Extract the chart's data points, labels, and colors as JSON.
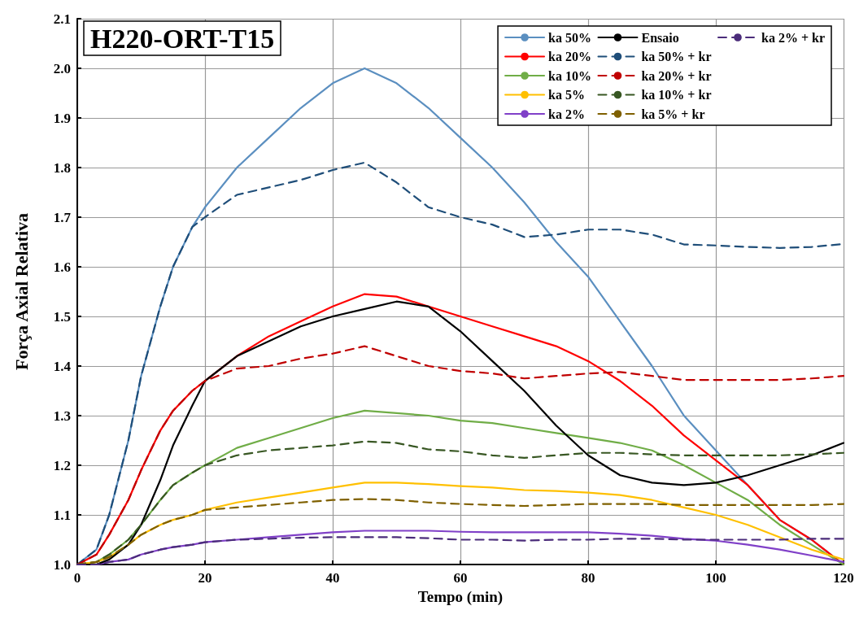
{
  "chart_data": {
    "type": "line",
    "title": "H220-ORT-T15",
    "xlabel": "Tempo (min)",
    "ylabel": "Força Axial Relativa",
    "x": [
      0,
      3,
      5,
      8,
      10,
      13,
      15,
      18,
      20,
      25,
      30,
      35,
      40,
      45,
      50,
      55,
      60,
      65,
      70,
      75,
      80,
      85,
      90,
      95,
      100,
      105,
      110,
      115,
      120
    ],
    "xlim": [
      0,
      120
    ],
    "xticks": [
      0,
      20,
      40,
      60,
      80,
      100,
      120
    ],
    "ylim": [
      1,
      2.1
    ],
    "yticks": [
      {
        "value": 1,
        "label": "1.0"
      },
      {
        "value": 1.1,
        "label": "1.1"
      },
      {
        "value": 1.2,
        "label": "1.2"
      },
      {
        "value": 1.3,
        "label": "1.3"
      },
      {
        "value": 1.4,
        "label": "1.4"
      },
      {
        "value": 1.5,
        "label": "1.5"
      },
      {
        "value": 1.6,
        "label": "1.6"
      },
      {
        "value": 1.7,
        "label": "1.7"
      },
      {
        "value": 1.8,
        "label": "1.8"
      },
      {
        "value": 1.9,
        "label": "1.9"
      },
      {
        "value": 2,
        "label": "2.0"
      },
      {
        "value": 2.1,
        "label": "2.1"
      }
    ],
    "grid": true,
    "legend": "top right",
    "marker": "none",
    "series": [
      {
        "name": "ka 50%",
        "color": "#5b8fc0",
        "line_style": "solid",
        "values": [
          1.0,
          1.03,
          1.1,
          1.25,
          1.38,
          1.52,
          1.6,
          1.68,
          1.72,
          1.8,
          1.86,
          1.92,
          1.97,
          2.0,
          1.97,
          1.92,
          1.86,
          1.8,
          1.73,
          1.65,
          1.58,
          1.49,
          1.4,
          1.3,
          1.23,
          1.16,
          1.09,
          1.05,
          1.0
        ]
      },
      {
        "name": "ka 20%",
        "color": "#ff0000",
        "line_style": "solid",
        "values": [
          1.0,
          1.02,
          1.06,
          1.13,
          1.19,
          1.27,
          1.31,
          1.35,
          1.37,
          1.42,
          1.46,
          1.49,
          1.52,
          1.545,
          1.54,
          1.52,
          1.5,
          1.48,
          1.46,
          1.44,
          1.41,
          1.37,
          1.32,
          1.26,
          1.21,
          1.16,
          1.09,
          1.05,
          1.0
        ]
      },
      {
        "name": "ka 10%",
        "color": "#70ad47",
        "line_style": "solid",
        "values": [
          1.0,
          1.005,
          1.02,
          1.05,
          1.08,
          1.13,
          1.16,
          1.185,
          1.2,
          1.235,
          1.255,
          1.275,
          1.295,
          1.31,
          1.305,
          1.3,
          1.29,
          1.285,
          1.275,
          1.265,
          1.255,
          1.245,
          1.23,
          1.2,
          1.165,
          1.13,
          1.08,
          1.04,
          1.0
        ]
      },
      {
        "name": "ka 5%",
        "color": "#ffc000",
        "line_style": "solid",
        "values": [
          1.0,
          1.005,
          1.015,
          1.04,
          1.06,
          1.08,
          1.09,
          1.1,
          1.11,
          1.125,
          1.135,
          1.145,
          1.155,
          1.165,
          1.165,
          1.162,
          1.158,
          1.155,
          1.15,
          1.148,
          1.145,
          1.14,
          1.13,
          1.115,
          1.1,
          1.08,
          1.055,
          1.03,
          1.01
        ]
      },
      {
        "name": "ka 2%",
        "color": "#8040c8",
        "line_style": "solid",
        "values": [
          1.0,
          1.0,
          1.005,
          1.01,
          1.02,
          1.03,
          1.035,
          1.04,
          1.045,
          1.05,
          1.055,
          1.06,
          1.065,
          1.068,
          1.068,
          1.068,
          1.066,
          1.065,
          1.065,
          1.065,
          1.065,
          1.062,
          1.058,
          1.052,
          1.048,
          1.04,
          1.03,
          1.018,
          1.005
        ]
      },
      {
        "name": "Ensaio",
        "color": "#000000",
        "line_style": "solid",
        "values": [
          1.0,
          1.0,
          1.01,
          1.04,
          1.08,
          1.17,
          1.24,
          1.32,
          1.37,
          1.42,
          1.45,
          1.48,
          1.5,
          1.515,
          1.53,
          1.52,
          1.47,
          1.41,
          1.35,
          1.28,
          1.22,
          1.18,
          1.165,
          1.16,
          1.165,
          1.18,
          1.2,
          1.22,
          1.245
        ]
      },
      {
        "name": "ka 50% + kr",
        "color": "#1f4e79",
        "line_style": "dashed",
        "values": [
          1.0,
          1.03,
          1.1,
          1.25,
          1.38,
          1.52,
          1.6,
          1.68,
          1.7,
          1.745,
          1.76,
          1.775,
          1.795,
          1.81,
          1.77,
          1.72,
          1.7,
          1.685,
          1.66,
          1.665,
          1.675,
          1.675,
          1.665,
          1.645,
          1.643,
          1.64,
          1.638,
          1.64,
          1.646
        ]
      },
      {
        "name": "ka 20% + kr",
        "color": "#c00000",
        "line_style": "dashed",
        "values": [
          1.0,
          1.02,
          1.06,
          1.13,
          1.19,
          1.27,
          1.31,
          1.35,
          1.37,
          1.395,
          1.4,
          1.415,
          1.425,
          1.44,
          1.42,
          1.4,
          1.39,
          1.385,
          1.375,
          1.38,
          1.385,
          1.388,
          1.38,
          1.372,
          1.372,
          1.372,
          1.372,
          1.375,
          1.38
        ]
      },
      {
        "name": "ka 10% + kr",
        "color": "#385723",
        "line_style": "dashed",
        "values": [
          1.0,
          1.005,
          1.02,
          1.05,
          1.08,
          1.13,
          1.16,
          1.185,
          1.2,
          1.22,
          1.23,
          1.235,
          1.24,
          1.248,
          1.245,
          1.232,
          1.228,
          1.22,
          1.215,
          1.22,
          1.225,
          1.225,
          1.222,
          1.22,
          1.22,
          1.22,
          1.22,
          1.222,
          1.225
        ]
      },
      {
        "name": "ka 5% + kr",
        "color": "#7f6000",
        "line_style": "dashed",
        "values": [
          1.0,
          1.005,
          1.015,
          1.04,
          1.06,
          1.08,
          1.09,
          1.1,
          1.11,
          1.115,
          1.12,
          1.125,
          1.13,
          1.132,
          1.13,
          1.125,
          1.122,
          1.12,
          1.118,
          1.12,
          1.122,
          1.122,
          1.122,
          1.12,
          1.12,
          1.12,
          1.12,
          1.12,
          1.122
        ]
      },
      {
        "name": "ka 2% + kr",
        "color": "#4b2c7a",
        "line_style": "dashed",
        "values": [
          1.0,
          1.0,
          1.005,
          1.01,
          1.02,
          1.03,
          1.035,
          1.04,
          1.045,
          1.05,
          1.052,
          1.054,
          1.055,
          1.055,
          1.055,
          1.053,
          1.05,
          1.05,
          1.048,
          1.05,
          1.05,
          1.052,
          1.052,
          1.05,
          1.05,
          1.05,
          1.05,
          1.052,
          1.052
        ]
      }
    ]
  }
}
